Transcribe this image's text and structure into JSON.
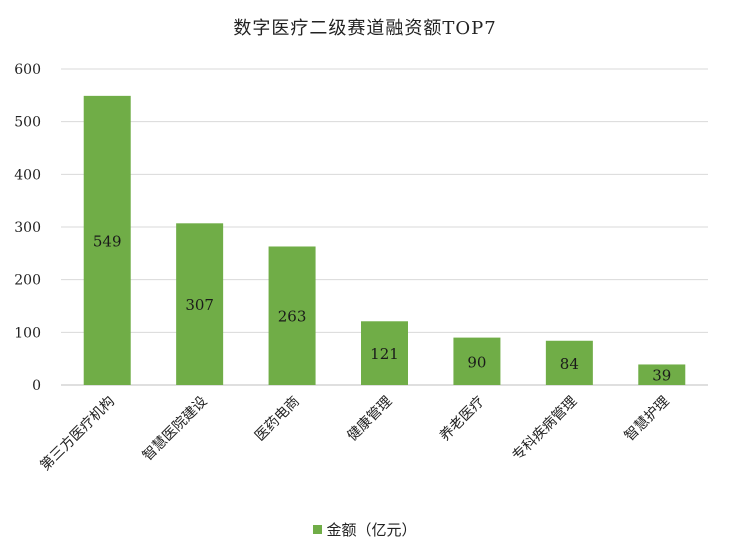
{
  "chart_data": {
    "type": "bar",
    "title": "数字医疗二级赛道融资额TOP7",
    "categories": [
      "第三方医疗机构",
      "智慧医院建设",
      "医药电商",
      "健康管理",
      "养老医疗",
      "专科疾病管理",
      "智慧护理"
    ],
    "series": [
      {
        "name": "金额（亿元）",
        "values": [
          549,
          307,
          263,
          121,
          90,
          84,
          39
        ],
        "color": "#70ad47"
      }
    ],
    "ylim": [
      0,
      600
    ],
    "yticks": [
      0,
      100,
      200,
      300,
      400,
      500,
      600
    ],
    "grid": true,
    "legend": "bottom",
    "data_labels": true
  }
}
